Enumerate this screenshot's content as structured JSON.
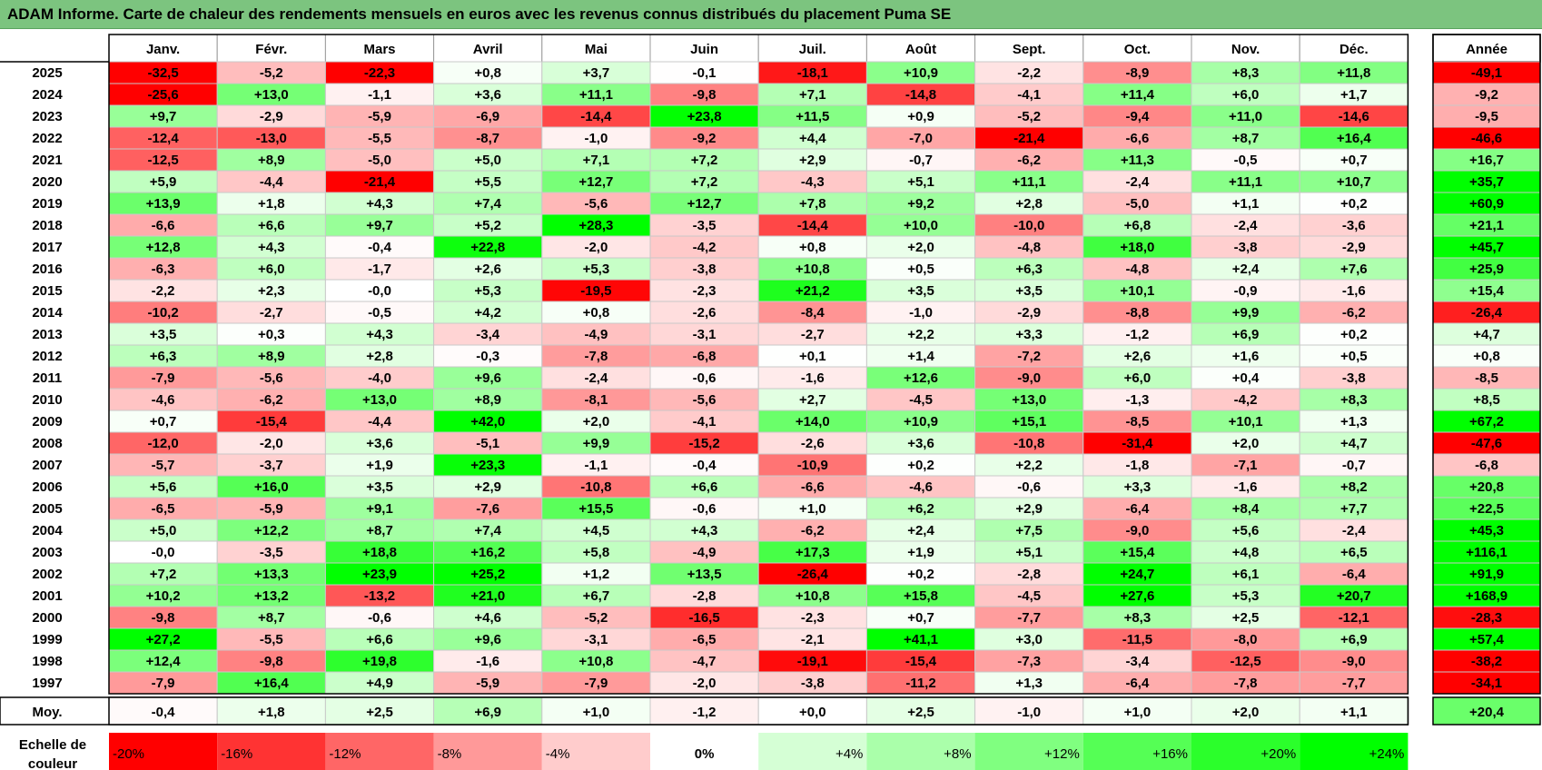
{
  "title": "ADAM Informe. Carte de chaleur des rendements mensuels en euros avec les revenus connus distribués du placement Puma SE",
  "chart_data": {
    "type": "heatmap",
    "months": [
      "Janv.",
      "Févr.",
      "Mars",
      "Avril",
      "Mai",
      "Juin",
      "Juil.",
      "Août",
      "Sept.",
      "Oct.",
      "Nov.",
      "Déc."
    ],
    "year_header": "Année",
    "avg_label": "Moy.",
    "rows": [
      {
        "year": "2025",
        "values": [
          "-32,5",
          "-5,2",
          "-22,3",
          "+0,8",
          "+3,7",
          "-0,1",
          "-18,1",
          "+10,9",
          "-2,2",
          "-8,9",
          "+8,3",
          "+11,8"
        ],
        "annual": "-49,1"
      },
      {
        "year": "2024",
        "values": [
          "-25,6",
          "+13,0",
          "-1,1",
          "+3,6",
          "+11,1",
          "-9,8",
          "+7,1",
          "-14,8",
          "-4,1",
          "+11,4",
          "+6,0",
          "+1,7"
        ],
        "annual": "-9,2"
      },
      {
        "year": "2023",
        "values": [
          "+9,7",
          "-2,9",
          "-5,9",
          "-6,9",
          "-14,4",
          "+23,8",
          "+11,5",
          "+0,9",
          "-5,2",
          "-9,4",
          "+11,0",
          "-14,6"
        ],
        "annual": "-9,5"
      },
      {
        "year": "2022",
        "values": [
          "-12,4",
          "-13,0",
          "-5,5",
          "-8,7",
          "-1,0",
          "-9,2",
          "+4,4",
          "-7,0",
          "-21,4",
          "-6,6",
          "+8,7",
          "+16,4"
        ],
        "annual": "-46,6"
      },
      {
        "year": "2021",
        "values": [
          "-12,5",
          "+8,9",
          "-5,0",
          "+5,0",
          "+7,1",
          "+7,2",
          "+2,9",
          "-0,7",
          "-6,2",
          "+11,3",
          "-0,5",
          "+0,7"
        ],
        "annual": "+16,7"
      },
      {
        "year": "2020",
        "values": [
          "+5,9",
          "-4,4",
          "-21,4",
          "+5,5",
          "+12,7",
          "+7,2",
          "-4,3",
          "+5,1",
          "+11,1",
          "-2,4",
          "+11,1",
          "+10,7"
        ],
        "annual": "+35,7"
      },
      {
        "year": "2019",
        "values": [
          "+13,9",
          "+1,8",
          "+4,3",
          "+7,4",
          "-5,6",
          "+12,7",
          "+7,8",
          "+9,2",
          "+2,8",
          "-5,0",
          "+1,1",
          "+0,2"
        ],
        "annual": "+60,9"
      },
      {
        "year": "2018",
        "values": [
          "-6,6",
          "+6,6",
          "+9,7",
          "+5,2",
          "+28,3",
          "-3,5",
          "-14,4",
          "+10,0",
          "-10,0",
          "+6,8",
          "-2,4",
          "-3,6"
        ],
        "annual": "+21,1"
      },
      {
        "year": "2017",
        "values": [
          "+12,8",
          "+4,3",
          "-0,4",
          "+22,8",
          "-2,0",
          "-4,2",
          "+0,8",
          "+2,0",
          "-4,8",
          "+18,0",
          "-3,8",
          "-2,9"
        ],
        "annual": "+45,7"
      },
      {
        "year": "2016",
        "values": [
          "-6,3",
          "+6,0",
          "-1,7",
          "+2,6",
          "+5,3",
          "-3,8",
          "+10,8",
          "+0,5",
          "+6,3",
          "-4,8",
          "+2,4",
          "+7,6"
        ],
        "annual": "+25,9"
      },
      {
        "year": "2015",
        "values": [
          "-2,2",
          "+2,3",
          "-0,0",
          "+5,3",
          "-19,5",
          "-2,3",
          "+21,2",
          "+3,5",
          "+3,5",
          "+10,1",
          "-0,9",
          "-1,6"
        ],
        "annual": "+15,4"
      },
      {
        "year": "2014",
        "values": [
          "-10,2",
          "-2,7",
          "-0,5",
          "+4,2",
          "+0,8",
          "-2,6",
          "-8,4",
          "-1,0",
          "-2,9",
          "-8,8",
          "+9,9",
          "-6,2"
        ],
        "annual": "-26,4"
      },
      {
        "year": "2013",
        "values": [
          "+3,5",
          "+0,3",
          "+4,3",
          "-3,4",
          "-4,9",
          "-3,1",
          "-2,7",
          "+2,2",
          "+3,3",
          "-1,2",
          "+6,9",
          "+0,2"
        ],
        "annual": "+4,7"
      },
      {
        "year": "2012",
        "values": [
          "+6,3",
          "+8,9",
          "+2,8",
          "-0,3",
          "-7,8",
          "-6,8",
          "+0,1",
          "+1,4",
          "-7,2",
          "+2,6",
          "+1,6",
          "+0,5"
        ],
        "annual": "+0,8"
      },
      {
        "year": "2011",
        "values": [
          "-7,9",
          "-5,6",
          "-4,0",
          "+9,6",
          "-2,4",
          "-0,6",
          "-1,6",
          "+12,6",
          "-9,0",
          "+6,0",
          "+0,4",
          "-3,8"
        ],
        "annual": "-8,5"
      },
      {
        "year": "2010",
        "values": [
          "-4,6",
          "-6,2",
          "+13,0",
          "+8,9",
          "-8,1",
          "-5,6",
          "+2,7",
          "-4,5",
          "+13,0",
          "-1,3",
          "-4,2",
          "+8,3"
        ],
        "annual": "+8,5"
      },
      {
        "year": "2009",
        "values": [
          "+0,7",
          "-15,4",
          "-4,4",
          "+42,0",
          "+2,0",
          "-4,1",
          "+14,0",
          "+10,9",
          "+15,1",
          "-8,5",
          "+10,1",
          "+1,3"
        ],
        "annual": "+67,2"
      },
      {
        "year": "2008",
        "values": [
          "-12,0",
          "-2,0",
          "+3,6",
          "-5,1",
          "+9,9",
          "-15,2",
          "-2,6",
          "+3,6",
          "-10,8",
          "-31,4",
          "+2,0",
          "+4,7"
        ],
        "annual": "-47,6"
      },
      {
        "year": "2007",
        "values": [
          "-5,7",
          "-3,7",
          "+1,9",
          "+23,3",
          "-1,1",
          "-0,4",
          "-10,9",
          "+0,2",
          "+2,2",
          "-1,8",
          "-7,1",
          "-0,7"
        ],
        "annual": "-6,8"
      },
      {
        "year": "2006",
        "values": [
          "+5,6",
          "+16,0",
          "+3,5",
          "+2,9",
          "-10,8",
          "+6,6",
          "-6,6",
          "-4,6",
          "-0,6",
          "+3,3",
          "-1,6",
          "+8,2"
        ],
        "annual": "+20,8"
      },
      {
        "year": "2005",
        "values": [
          "-6,5",
          "-5,9",
          "+9,1",
          "-7,6",
          "+15,5",
          "-0,6",
          "+1,0",
          "+6,2",
          "+2,9",
          "-6,4",
          "+8,4",
          "+7,7"
        ],
        "annual": "+22,5"
      },
      {
        "year": "2004",
        "values": [
          "+5,0",
          "+12,2",
          "+8,7",
          "+7,4",
          "+4,5",
          "+4,3",
          "-6,2",
          "+2,4",
          "+7,5",
          "-9,0",
          "+5,6",
          "-2,4"
        ],
        "annual": "+45,3"
      },
      {
        "year": "2003",
        "values": [
          "-0,0",
          "-3,5",
          "+18,8",
          "+16,2",
          "+5,8",
          "-4,9",
          "+17,3",
          "+1,9",
          "+5,1",
          "+15,4",
          "+4,8",
          "+6,5"
        ],
        "annual": "+116,1"
      },
      {
        "year": "2002",
        "values": [
          "+7,2",
          "+13,3",
          "+23,9",
          "+25,2",
          "+1,2",
          "+13,5",
          "-26,4",
          "+0,2",
          "-2,8",
          "+24,7",
          "+6,1",
          "-6,4"
        ],
        "annual": "+91,9"
      },
      {
        "year": "2001",
        "values": [
          "+10,2",
          "+13,2",
          "-13,2",
          "+21,0",
          "+6,7",
          "-2,8",
          "+10,8",
          "+15,8",
          "-4,5",
          "+27,6",
          "+5,3",
          "+20,7"
        ],
        "annual": "+168,9"
      },
      {
        "year": "2000",
        "values": [
          "-9,8",
          "+8,7",
          "-0,6",
          "+4,6",
          "-5,2",
          "-16,5",
          "-2,3",
          "+0,7",
          "-7,7",
          "+8,3",
          "+2,5",
          "-12,1"
        ],
        "annual": "-28,3"
      },
      {
        "year": "1999",
        "values": [
          "+27,2",
          "-5,5",
          "+6,6",
          "+9,6",
          "-3,1",
          "-6,5",
          "-2,1",
          "+41,1",
          "+3,0",
          "-11,5",
          "-8,0",
          "+6,9"
        ],
        "annual": "+57,4"
      },
      {
        "year": "1998",
        "values": [
          "+12,4",
          "-9,8",
          "+19,8",
          "-1,6",
          "+10,8",
          "-4,7",
          "-19,1",
          "-15,4",
          "-7,3",
          "-3,4",
          "-12,5",
          "-9,0"
        ],
        "annual": "-38,2"
      },
      {
        "year": "1997",
        "values": [
          "-7,9",
          "+16,4",
          "+4,9",
          "-5,9",
          "-7,9",
          "-2,0",
          "-3,8",
          "-11,2",
          "+1,3",
          "-6,4",
          "-7,8",
          "-7,7"
        ],
        "annual": "-34,1"
      }
    ],
    "average": {
      "values": [
        "-0,4",
        "+1,8",
        "+2,5",
        "+6,9",
        "+1,0",
        "-1,2",
        "+0,0",
        "+2,5",
        "-1,0",
        "+1,0",
        "+2,0",
        "+1,1"
      ],
      "annual": "+20,4"
    },
    "scale": {
      "label_line1": "Echelle de",
      "label_line2": "couleur",
      "stops": [
        "-20%",
        "-16%",
        "-12%",
        "-8%",
        "-4%",
        "0%",
        "+4%",
        "+8%",
        "+12%",
        "+16%",
        "+20%",
        "+24%"
      ]
    },
    "colors": {
      "red_full": "#ff0000",
      "green_full": "#00ff00",
      "neutral": "#ffffff",
      "title_bg": "#7cc47f"
    }
  }
}
